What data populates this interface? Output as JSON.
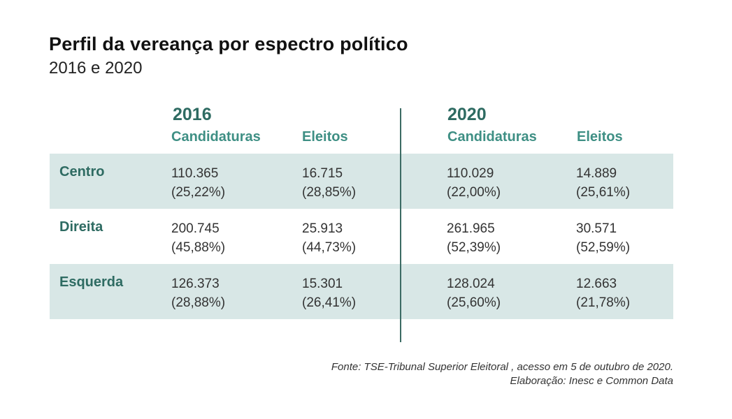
{
  "title": "Perfil da vereança por espectro político",
  "subtitle": "2016 e 2020",
  "years": [
    "2016",
    "2020"
  ],
  "columns": [
    "Candidaturas",
    "Eleitos",
    "Candidaturas",
    "Eleitos"
  ],
  "rows": [
    {
      "label": "Centro",
      "cells": [
        {
          "value": "110.365",
          "pct": "(25,22%)"
        },
        {
          "value": "16.715",
          "pct": "(28,85%)"
        },
        {
          "value": "110.029",
          "pct": "(22,00%)"
        },
        {
          "value": "14.889",
          "pct": "(25,61%)"
        }
      ]
    },
    {
      "label": "Direita",
      "cells": [
        {
          "value": "200.745",
          "pct": "(45,88%)"
        },
        {
          "value": "25.913",
          "pct": "(44,73%)"
        },
        {
          "value": "261.965",
          "pct": "(52,39%)"
        },
        {
          "value": "30.571",
          "pct": "(52,59%)"
        }
      ]
    },
    {
      "label": "Esquerda",
      "cells": [
        {
          "value": "126.373",
          "pct": "(28,88%)"
        },
        {
          "value": "15.301",
          "pct": "(26,41%)"
        },
        {
          "value": "128.024",
          "pct": "(25,60%)"
        },
        {
          "value": "12.663",
          "pct": "(21,78%)"
        }
      ]
    }
  ],
  "source": {
    "line1": "Fonte: TSE-Tribunal Superior Eleitoral , acesso em 5 de outubro de 2020.",
    "line2": "Elaboração: Inesc e Common Data"
  },
  "colors": {
    "accent": "#2e6b62",
    "header": "#3e8f84",
    "row_shade": "#d8e7e6",
    "divider": "#3c6b64"
  },
  "chart_data": {
    "type": "table",
    "title": "Perfil da vereança por espectro político",
    "subtitle": "2016 e 2020",
    "columns": [
      "2016 Candidaturas",
      "2016 Eleitos",
      "2020 Candidaturas",
      "2020 Eleitos"
    ],
    "rows": [
      "Centro",
      "Direita",
      "Esquerda"
    ],
    "values": [
      [
        110365,
        16715,
        110029,
        14889
      ],
      [
        200745,
        25913,
        261965,
        30571
      ],
      [
        126373,
        15301,
        128024,
        12663
      ]
    ],
    "percentages": [
      [
        25.22,
        28.85,
        22.0,
        25.61
      ],
      [
        45.88,
        44.73,
        52.39,
        52.59
      ],
      [
        28.88,
        26.41,
        25.6,
        21.78
      ]
    ]
  }
}
